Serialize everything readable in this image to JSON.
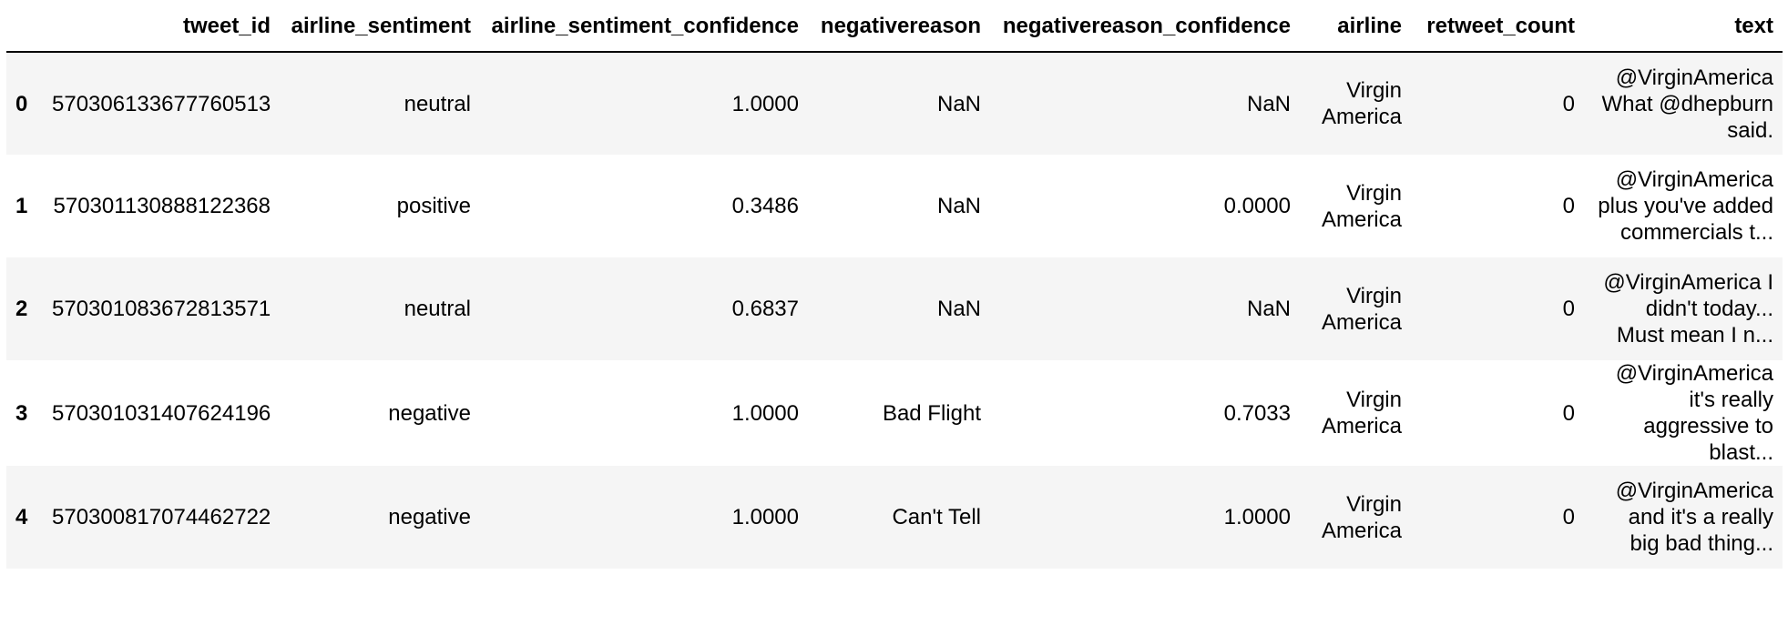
{
  "columns": [
    "",
    "tweet_id",
    "airline_sentiment",
    "airline_sentiment_confidence",
    "negativereason",
    "negativereason_confidence",
    "airline",
    "retweet_count",
    "text"
  ],
  "rows": [
    {
      "index": "0",
      "tweet_id": "570306133677760513",
      "airline_sentiment": "neutral",
      "airline_sentiment_confidence": "1.0000",
      "negativereason": "NaN",
      "negativereason_confidence": "NaN",
      "airline": "Virgin America",
      "retweet_count": "0",
      "text": "@VirginAmerica What @dhepburn said."
    },
    {
      "index": "1",
      "tweet_id": "570301130888122368",
      "airline_sentiment": "positive",
      "airline_sentiment_confidence": "0.3486",
      "negativereason": "NaN",
      "negativereason_confidence": "0.0000",
      "airline": "Virgin America",
      "retweet_count": "0",
      "text": "@VirginAmerica plus you've added commercials t..."
    },
    {
      "index": "2",
      "tweet_id": "570301083672813571",
      "airline_sentiment": "neutral",
      "airline_sentiment_confidence": "0.6837",
      "negativereason": "NaN",
      "negativereason_confidence": "NaN",
      "airline": "Virgin America",
      "retweet_count": "0",
      "text": "@VirginAmerica I didn't today... Must mean I n..."
    },
    {
      "index": "3",
      "tweet_id": "570301031407624196",
      "airline_sentiment": "negative",
      "airline_sentiment_confidence": "1.0000",
      "negativereason": "Bad Flight",
      "negativereason_confidence": "0.7033",
      "airline": "Virgin America",
      "retweet_count": "0",
      "text": "@VirginAmerica it's really aggressive to blast..."
    },
    {
      "index": "4",
      "tweet_id": "570300817074462722",
      "airline_sentiment": "negative",
      "airline_sentiment_confidence": "1.0000",
      "negativereason": "Can't Tell",
      "negativereason_confidence": "1.0000",
      "airline": "Virgin America",
      "retweet_count": "0",
      "text": "@VirginAmerica and it's a really big bad thing..."
    }
  ],
  "colors": {
    "stripe": "#f5f5f5",
    "header_rule": "#000000"
  }
}
